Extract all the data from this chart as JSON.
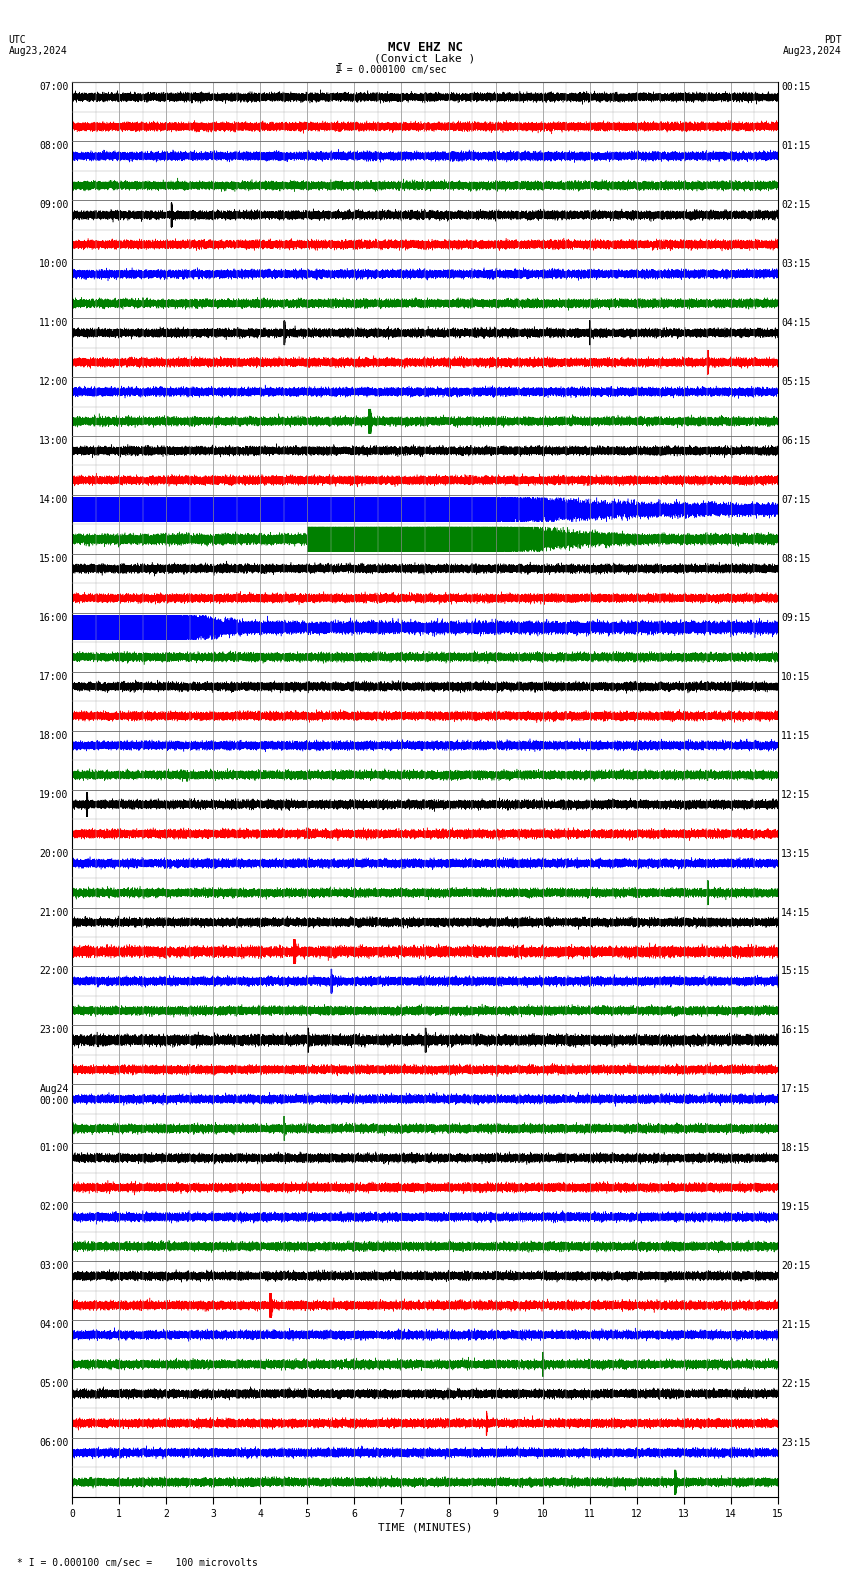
{
  "title_line1": "MCV EHZ NC",
  "title_line2": "(Convict Lake )",
  "scale_label": "I = 0.000100 cm/sec",
  "utc_label": "UTC",
  "utc_date": "Aug23,2024",
  "pdt_label": "PDT",
  "pdt_date": "Aug23,2024",
  "bottom_label": "* I = 0.000100 cm/sec =    100 microvolts",
  "xlabel": "TIME (MINUTES)",
  "xticks": [
    0,
    1,
    2,
    3,
    4,
    5,
    6,
    7,
    8,
    9,
    10,
    11,
    12,
    13,
    14,
    15
  ],
  "background_color": "#ffffff",
  "trace_colors": [
    "black",
    "red",
    "blue",
    "green"
  ],
  "time_minutes": 15,
  "sample_rate": 50,
  "left_labels_utc": [
    "07:00",
    "",
    "08:00",
    "",
    "09:00",
    "",
    "10:00",
    "",
    "11:00",
    "",
    "12:00",
    "",
    "13:00",
    "",
    "14:00",
    "",
    "15:00",
    "",
    "16:00",
    "",
    "17:00",
    "",
    "18:00",
    "",
    "19:00",
    "",
    "20:00",
    "",
    "21:00",
    "",
    "22:00",
    "",
    "23:00",
    "",
    "Aug24\n00:00",
    "",
    "01:00",
    "",
    "02:00",
    "",
    "03:00",
    "",
    "04:00",
    "",
    "05:00",
    "",
    "06:00",
    ""
  ],
  "right_labels_pdt": [
    "00:15",
    "",
    "01:15",
    "",
    "02:15",
    "",
    "03:15",
    "",
    "04:15",
    "",
    "05:15",
    "",
    "06:15",
    "",
    "07:15",
    "",
    "08:15",
    "",
    "09:15",
    "",
    "10:15",
    "",
    "11:15",
    "",
    "12:15",
    "",
    "13:15",
    "",
    "14:15",
    "",
    "15:15",
    "",
    "16:15",
    "",
    "17:15",
    "",
    "18:15",
    "",
    "19:15",
    "",
    "20:15",
    "",
    "21:15",
    "",
    "22:15",
    "",
    "23:15",
    ""
  ],
  "grid_color": "#999999",
  "font_size_title": 9,
  "font_size_labels": 7,
  "font_size_axis": 7
}
